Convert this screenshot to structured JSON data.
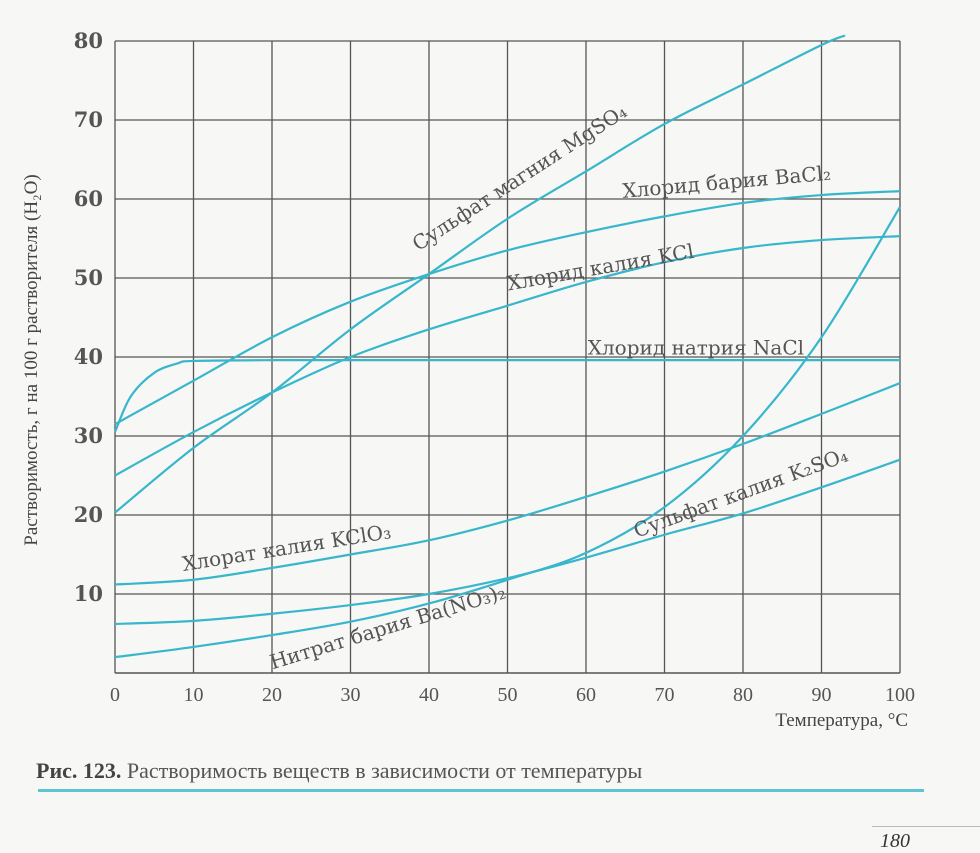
{
  "chart_data": {
    "type": "line",
    "title": "",
    "xlabel": "Температура, °С",
    "ylabel": "Растворимость, г на 100 г растворителя (H₂O)",
    "xlim": [
      0,
      100
    ],
    "ylim": [
      0,
      80
    ],
    "grid": true,
    "x_ticks": [
      0,
      10,
      20,
      30,
      40,
      50,
      60,
      70,
      80,
      90,
      100
    ],
    "y_ticks": [
      10,
      20,
      30,
      40,
      50,
      60,
      70,
      80
    ],
    "line_color": "#37b6cc",
    "series": [
      {
        "name": "Сульфат магния MgSO₄",
        "x": [
          0,
          10,
          20,
          30,
          40,
          50,
          60,
          70,
          80,
          90,
          93
        ],
        "y": [
          20.3,
          28.5,
          35.5,
          43.5,
          50.5,
          57.5,
          63.5,
          69.5,
          74.5,
          79.5,
          80.7
        ]
      },
      {
        "name": "Хлорид бария BaCl₂",
        "x": [
          0,
          10,
          20,
          30,
          40,
          50,
          60,
          70,
          80,
          90,
          100
        ],
        "y": [
          31.5,
          37,
          42.5,
          47,
          50.5,
          53.5,
          55.8,
          57.8,
          59.5,
          60.5,
          61
        ]
      },
      {
        "name": "Хлорид калия KCl",
        "x": [
          0,
          10,
          20,
          30,
          40,
          50,
          60,
          70,
          80,
          90,
          100
        ],
        "y": [
          25,
          30.5,
          35.5,
          40,
          43.5,
          46.5,
          49.5,
          52,
          53.8,
          54.8,
          55.3
        ]
      },
      {
        "name": "Хлорид натрия NaCl",
        "x": [
          0,
          2,
          5,
          8,
          10,
          20,
          30,
          40,
          50,
          60,
          70,
          80,
          90,
          100
        ],
        "y": [
          30.5,
          35,
          38,
          39.2,
          39.5,
          39.6,
          39.6,
          39.6,
          39.6,
          39.6,
          39.6,
          39.6,
          39.6,
          39.6
        ]
      },
      {
        "name": "Хлорат калия KClO₃",
        "x": [
          0,
          10,
          20,
          30,
          40,
          50,
          60,
          70,
          80,
          90,
          100
        ],
        "y": [
          11.2,
          11.8,
          13.3,
          15,
          16.8,
          19.3,
          22.3,
          25.5,
          29,
          32.8,
          36.7
        ]
      },
      {
        "name": "Сульфат калия K₂SO₄",
        "x": [
          0,
          10,
          20,
          30,
          40,
          50,
          60,
          70,
          80,
          90,
          100
        ],
        "y": [
          6.2,
          6.6,
          7.5,
          8.6,
          10,
          12,
          14.6,
          17.5,
          20.2,
          23.5,
          27
        ]
      },
      {
        "name": "Нитрат бария Ba(NO₃)₂",
        "x": [
          0,
          10,
          20,
          30,
          40,
          50,
          60,
          70,
          80,
          90,
          100
        ],
        "y": [
          2,
          3.3,
          4.8,
          6.5,
          8.8,
          11.8,
          15.2,
          21,
          30,
          42.5,
          59
        ]
      }
    ],
    "annotations": [
      {
        "text": "Сульфат магния MgSO₄",
        "x": 52,
        "y": 62,
        "angle": -33
      },
      {
        "text": "Хлорид бария BaCl₂",
        "x": 78,
        "y": 61.3,
        "angle": -5
      },
      {
        "text": "Хлорид калия KCl",
        "x": 62,
        "y": 50.5,
        "angle": -10
      },
      {
        "text": "Хлорид натрия NaCl",
        "x": 74,
        "y": 40.3,
        "angle": 0
      },
      {
        "text": "Хлорат калия KClO₃",
        "x": 22,
        "y": 15,
        "angle": -9
      },
      {
        "text": "Сульфат калия K₂SO₄",
        "x": 80,
        "y": 22,
        "angle": -20
      },
      {
        "text": "Нитрат бария Ba(NO₃)₂",
        "x": 35,
        "y": 5,
        "angle": -17
      }
    ]
  },
  "caption": {
    "prefix": "Рис. 123.",
    "text": " Растворимость веществ в зависимости от температуры"
  },
  "page_number": "180"
}
